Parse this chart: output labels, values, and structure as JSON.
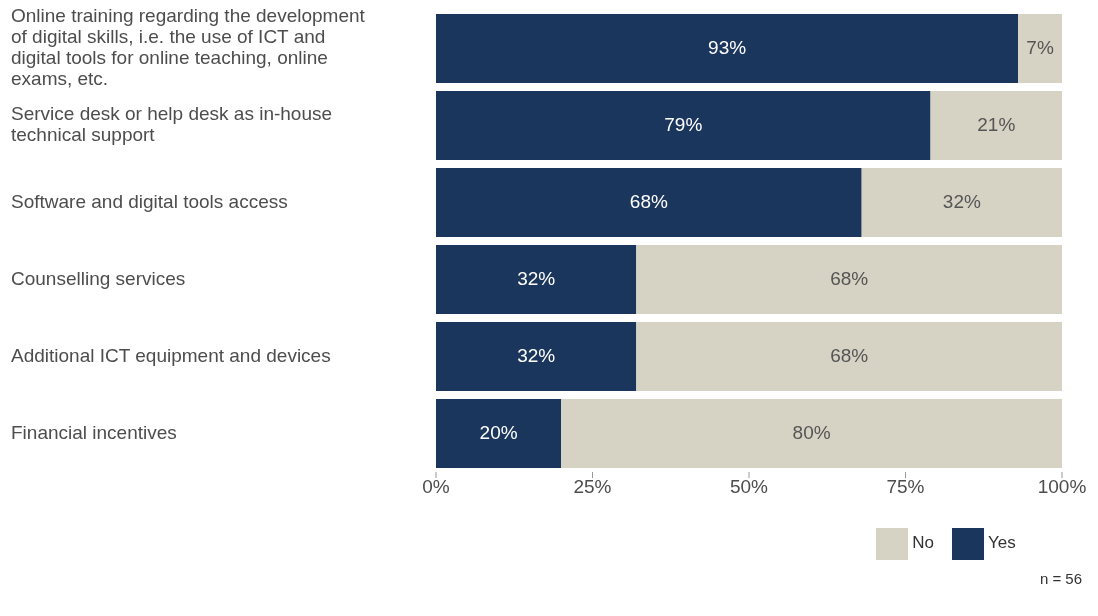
{
  "chart_data": {
    "type": "bar",
    "orientation": "horizontal",
    "stacked": true,
    "categories": [
      "Online training regarding the development of digital skills, i.e. the use of ICT and digital tools for online teaching, online exams, etc.",
      "Service desk or help desk as in-house technical support",
      "Software and digital tools access",
      "Counselling services",
      "Additional ICT equipment and devices",
      "Financial incentives"
    ],
    "series": [
      {
        "name": "Yes",
        "color": "#1b365d",
        "values": [
          93,
          79,
          68,
          32,
          32,
          20
        ],
        "value_labels": [
          "93%",
          "79%",
          "68%",
          "32%",
          "32%",
          "20%"
        ]
      },
      {
        "name": "No",
        "color": "#d6d3c4",
        "values": [
          7,
          21,
          32,
          68,
          68,
          80
        ],
        "value_labels": [
          "7%",
          "21%",
          "32%",
          "68%",
          "68%",
          "80%"
        ]
      }
    ],
    "xlim": [
      0,
      100
    ],
    "xticks": [
      {
        "value": 0,
        "label": "0%"
      },
      {
        "value": 25,
        "label": "25%"
      },
      {
        "value": 50,
        "label": "50%"
      },
      {
        "value": 75,
        "label": "75%"
      },
      {
        "value": 100,
        "label": "100%"
      }
    ],
    "grid": false,
    "legend": "bottom",
    "annotations": [
      "n = 56"
    ]
  }
}
